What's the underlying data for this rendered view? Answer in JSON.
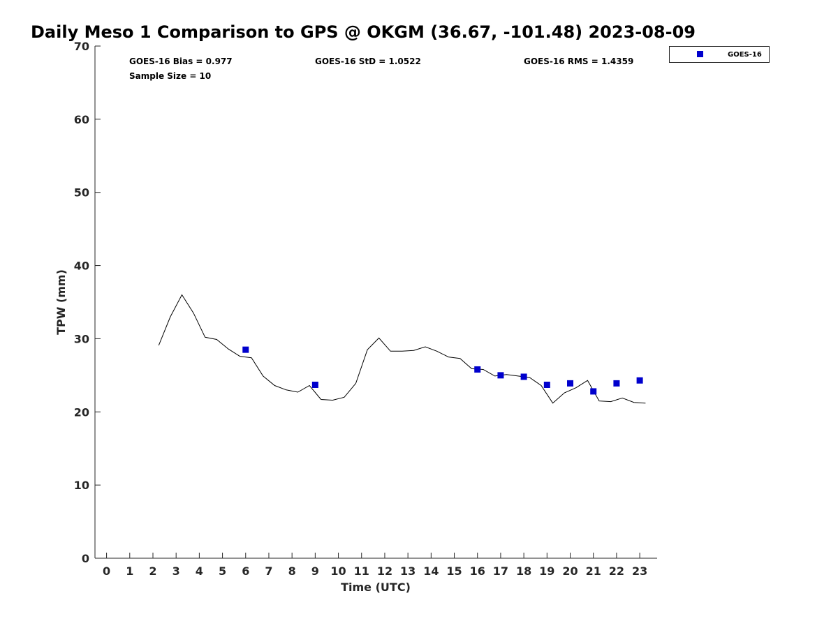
{
  "chart_data": {
    "type": "line",
    "title": "Daily Meso 1 Comparison to GPS @ OKGM (36.67, -101.48) 2023-08-09",
    "xlabel": "Time (UTC)",
    "ylabel": "TPW (mm)",
    "xlim": [
      -0.5,
      23.75
    ],
    "ylim": [
      0,
      70
    ],
    "x_ticks": [
      "0",
      "1",
      "2",
      "3",
      "4",
      "5",
      "6",
      "7",
      "8",
      "9",
      "10",
      "11",
      "12",
      "13",
      "14",
      "15",
      "16",
      "17",
      "18",
      "19",
      "20",
      "21",
      "22",
      "23"
    ],
    "y_ticks": [
      "0",
      "10",
      "20",
      "30",
      "40",
      "50",
      "60",
      "70"
    ],
    "grid": false,
    "legend_position": "top-right, outside",
    "stats": {
      "bias": "GOES-16 Bias = 0.977",
      "sample_size": "Sample Size = 10",
      "std": "GOES-16 StD = 1.0522",
      "rms": "GOES-16 RMS = 1.4359"
    },
    "series": [
      {
        "name": "",
        "kind": "line",
        "color": "#000000",
        "x": [
          2.25,
          2.75,
          3.25,
          3.75,
          4.25,
          4.75,
          5.25,
          5.75,
          6.25,
          6.75,
          7.25,
          7.75,
          8.25,
          8.75,
          9.25,
          9.75,
          10.25,
          10.75,
          11.25,
          11.75,
          12.25,
          12.75,
          13.25,
          13.75,
          14.25,
          14.75,
          15.25,
          15.75,
          16.25,
          16.75,
          17.25,
          17.75,
          18.25,
          18.75,
          19.25,
          19.75,
          20.25,
          20.75,
          21.25,
          21.75,
          22.25,
          22.75,
          23.25
        ],
        "y": [
          29.1,
          33.0,
          36.0,
          33.5,
          30.2,
          29.9,
          28.6,
          27.6,
          27.4,
          24.9,
          23.6,
          23.0,
          22.7,
          23.6,
          21.7,
          21.6,
          22.0,
          23.9,
          28.5,
          30.1,
          28.3,
          28.3,
          28.4,
          28.9,
          28.3,
          27.5,
          27.3,
          25.9,
          25.8,
          24.9,
          25.1,
          24.9,
          24.7,
          23.6,
          21.2,
          22.6,
          23.3,
          24.3,
          21.5,
          21.4,
          21.9,
          21.3,
          21.2
        ]
      },
      {
        "name": "GOES-16",
        "kind": "scatter",
        "color": "#0000CD",
        "x": [
          6,
          9,
          16,
          17,
          18,
          19,
          20,
          21,
          22,
          23
        ],
        "y": [
          28.5,
          23.7,
          25.8,
          25.0,
          24.8,
          23.7,
          23.9,
          22.8,
          23.9,
          24.3
        ]
      }
    ]
  }
}
